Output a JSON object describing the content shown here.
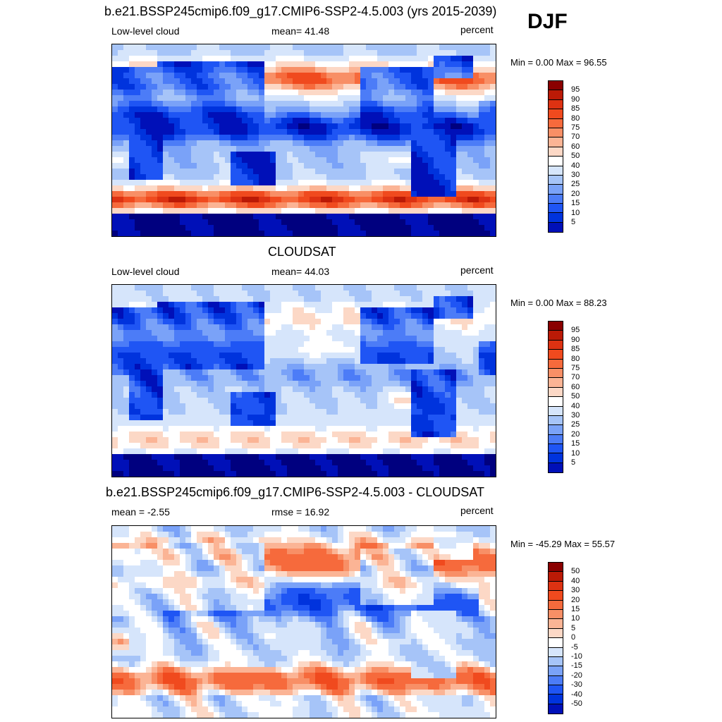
{
  "season": "DJF",
  "colors": {
    "cloud": [
      "#00007f",
      "#0010b8",
      "#0033dd",
      "#1f55f4",
      "#4c7cf7",
      "#7aa2f8",
      "#a6c4f8",
      "#d6e5fb",
      "#ffffff",
      "#fcd8c6",
      "#fbb495",
      "#f88f66",
      "#f66a3c",
      "#f04a1e",
      "#dd3212",
      "#bb1a06",
      "#8a0000"
    ],
    "diff": [
      "#00007f",
      "#0010b8",
      "#0033dd",
      "#1f55f4",
      "#4c7cf7",
      "#7aa2f8",
      "#a6c4f8",
      "#d6e5fb",
      "#ffffff",
      "#fcd8c6",
      "#fbb495",
      "#f88f66",
      "#f66a3c",
      "#f04a1e",
      "#dd3212",
      "#bb1a06",
      "#8a0000"
    ]
  },
  "panels": [
    {
      "id": "model",
      "title": "b.e21.BSSP245cmip6.f09_g17.CMIP6-SSP2-4.5.003 (yrs 2015-2039)",
      "left_label": "Low-level cloud",
      "center_label": "mean=  41.48",
      "right_label": "percent",
      "minmax": "Min =    0.00 Max =  96.55",
      "colorbar_labels": [
        "95",
        "90",
        "85",
        "80",
        "75",
        "70",
        "60",
        "50",
        "40",
        "30",
        "25",
        "20",
        "15",
        "10",
        "5"
      ]
    },
    {
      "id": "obs",
      "title": "CLOUDSAT",
      "left_label": "Low-level cloud",
      "center_label": "mean=  44.03",
      "right_label": "percent",
      "minmax": "Min =    0.00 Max =  88.23",
      "colorbar_labels": [
        "95",
        "90",
        "85",
        "80",
        "75",
        "70",
        "60",
        "50",
        "40",
        "30",
        "25",
        "20",
        "15",
        "10",
        "5"
      ]
    },
    {
      "id": "diff",
      "title": "b.e21.BSSP245cmip6.f09_g17.CMIP6-SSP2-4.5.003 - CLOUDSAT",
      "left_label": "mean =  -2.55",
      "center_label": "rmse =  16.92",
      "right_label": "percent",
      "minmax": "Min = -45.29 Max =  55.57",
      "colorbar_labels": [
        "50",
        "40",
        "30",
        "20",
        "15",
        "10",
        "5",
        "0",
        "-5",
        "-10",
        "-15",
        "-20",
        "-30",
        "-40",
        "-50"
      ]
    }
  ],
  "chart_data": [
    {
      "type": "heatmap",
      "title": "b.e21.BSSP245cmip6.f09_g17.CMIP6-SSP2-4.5.003 (yrs 2015-2039)",
      "variable": "Low-level cloud",
      "units": "percent",
      "mean": 41.48,
      "min": 0.0,
      "max": 96.55,
      "levels": [
        5,
        10,
        15,
        20,
        25,
        30,
        40,
        50,
        60,
        70,
        75,
        80,
        85,
        90,
        95
      ]
    },
    {
      "type": "heatmap",
      "title": "CLOUDSAT",
      "variable": "Low-level cloud",
      "units": "percent",
      "mean": 44.03,
      "min": 0.0,
      "max": 88.23,
      "levels": [
        5,
        10,
        15,
        20,
        25,
        30,
        40,
        50,
        60,
        70,
        75,
        80,
        85,
        90,
        95
      ]
    },
    {
      "type": "heatmap",
      "title": "b.e21.BSSP245cmip6.f09_g17.CMIP6-SSP2-4.5.003 - CLOUDSAT",
      "units": "percent",
      "mean": -2.55,
      "rmse": 16.92,
      "min": -45.29,
      "max": 55.57,
      "levels": [
        -50,
        -40,
        -30,
        -20,
        -15,
        -10,
        -5,
        0,
        5,
        10,
        15,
        20,
        30,
        40,
        50
      ]
    }
  ]
}
